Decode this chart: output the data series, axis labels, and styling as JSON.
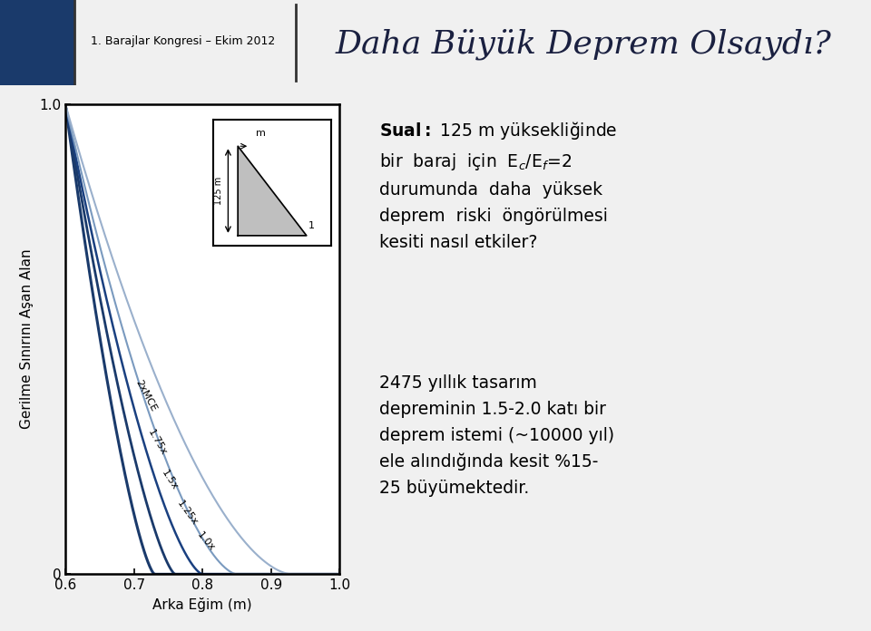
{
  "title": "Daha Büyük Deprem Olsaydı?",
  "header_text": "1. Barajlar Kongresi – Ekim 2012",
  "xlabel": "Arka Eğim (m)",
  "ylabel": "Gerilme Sınırını Aşan Alan",
  "xlim": [
    0.6,
    1.0
  ],
  "ylim": [
    0.0,
    1.0
  ],
  "xticks": [
    0.6,
    0.7,
    0.8,
    0.9,
    1.0
  ],
  "yticks": [
    0.0,
    1.0
  ],
  "yticklabels": [
    "0",
    "1.0"
  ],
  "curve_labels": [
    "2xMCE",
    "1.75x",
    "1.5x",
    "1.25x",
    "1.0x"
  ],
  "curve_colors": [
    "#1a3a6b",
    "#1a3a6b",
    "#1a4080",
    "#7a9abf",
    "#9ab0cc"
  ],
  "curve_linewidths": [
    2.2,
    2.0,
    1.8,
    1.5,
    1.5
  ],
  "bg_color": "#f0f0f0",
  "header_bg": "#c5d8ec",
  "plot_bg": "#ffffff",
  "box1_bg": "#ffffff",
  "box2_bg": "#ffffff",
  "dam_color": "#b0b0b0",
  "dam_label": "125 m",
  "dam_top_label": "m",
  "dam_slope_label": "1"
}
